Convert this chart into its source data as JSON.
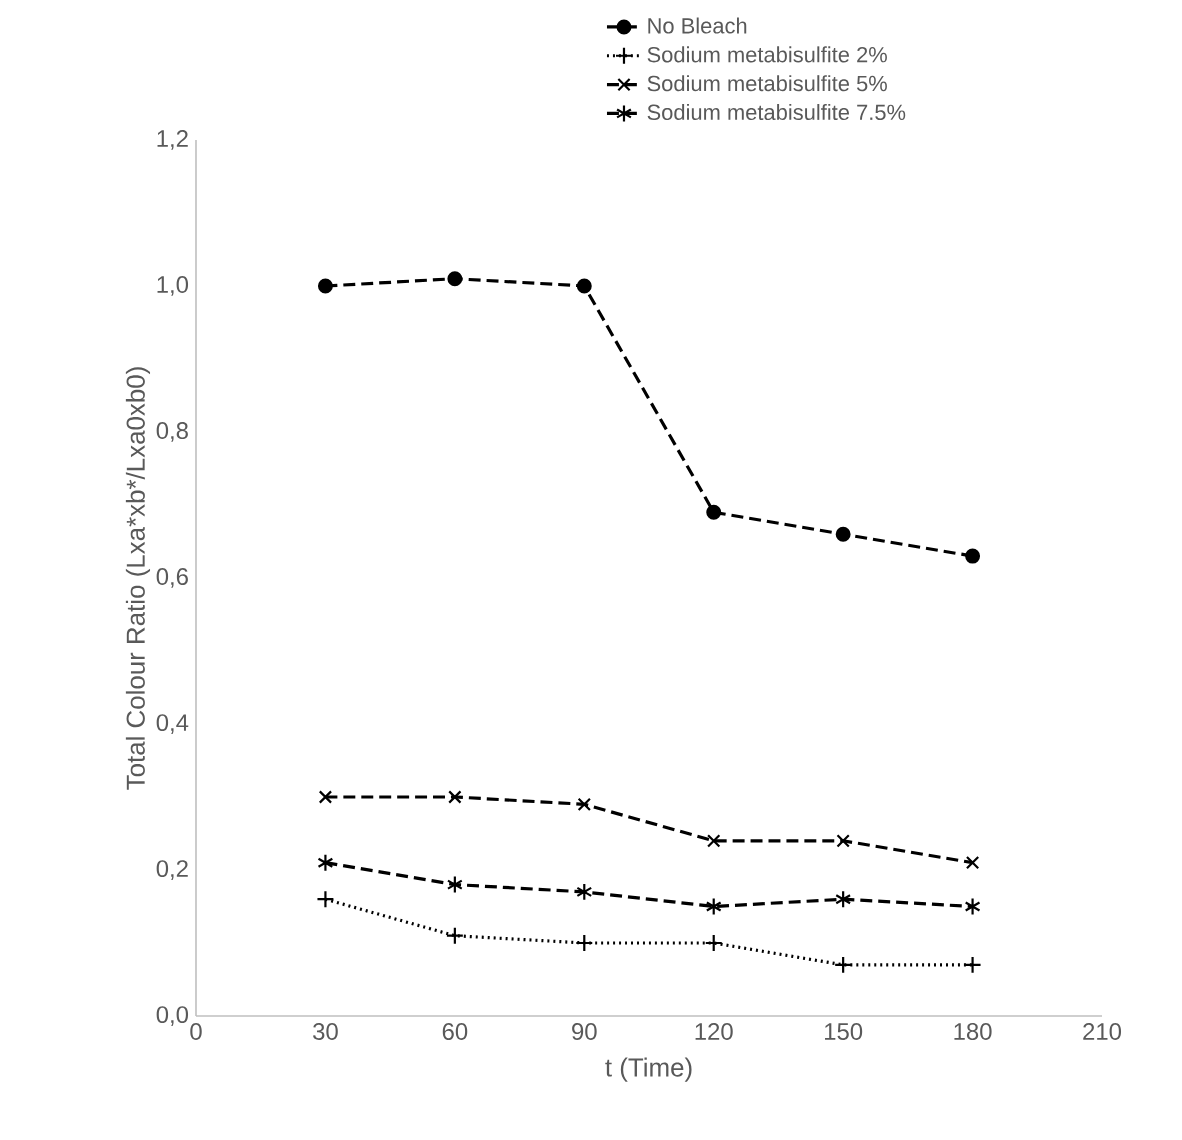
{
  "chart_data": {
    "type": "line",
    "xlabel": "t (Time)",
    "ylabel": "Total Colour Ratio (Lxa*xb*/Lxa0xb0)",
    "x": [
      30,
      60,
      90,
      120,
      150,
      180
    ],
    "series": [
      {
        "name": "No Bleach",
        "color": "#000000",
        "marker": "circle",
        "line_style": "dashed",
        "values": [
          1.0,
          1.01,
          1.0,
          0.69,
          0.66,
          0.63
        ]
      },
      {
        "name": "Sodium metabisulfite 2%",
        "color": "#000000",
        "marker": "plus",
        "line_style": "dotted",
        "values": [
          0.16,
          0.11,
          0.1,
          0.1,
          0.07,
          0.07
        ]
      },
      {
        "name": "Sodium metabisulfite 5%",
        "color": "#000000",
        "marker": "x",
        "line_style": "dashed",
        "values": [
          0.3,
          0.3,
          0.29,
          0.24,
          0.24,
          0.21
        ]
      },
      {
        "name": "Sodium metabisulfite 7.5%",
        "color": "#000000",
        "marker": "cross",
        "line_style": "dashed",
        "values": [
          0.21,
          0.18,
          0.17,
          0.15,
          0.16,
          0.15
        ]
      }
    ],
    "xlim": [
      0,
      210
    ],
    "xticks": [
      0,
      30,
      60,
      90,
      120,
      150,
      180,
      210
    ],
    "ylim": [
      0,
      1.2
    ],
    "yticks": [
      {
        "value": 0,
        "label": "0,0"
      },
      {
        "value": 0.2,
        "label": "0,2"
      },
      {
        "value": 0.4,
        "label": "0,4"
      },
      {
        "value": 0.6,
        "label": "0,6"
      },
      {
        "value": 0.8,
        "label": "0,8"
      },
      {
        "value": 1.0,
        "label": "1,0"
      },
      {
        "value": 1.2,
        "label": "1,2"
      }
    ],
    "grid": false,
    "legend": "top"
  }
}
